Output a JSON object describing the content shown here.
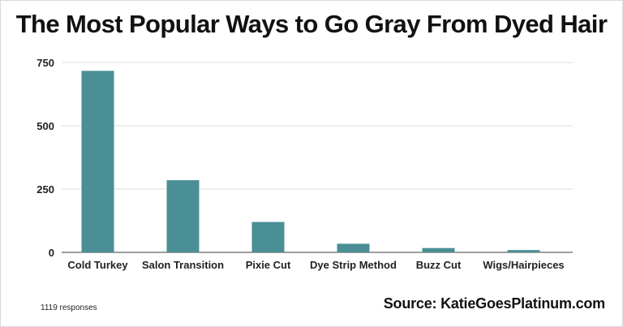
{
  "chart_data": {
    "type": "bar",
    "title": "The Most Popular Ways to Go Gray From Dyed Hair",
    "categories": [
      "Cold Turkey",
      "Salon Transition",
      "Pixie Cut",
      "Dye Strip Method",
      "Buzz Cut",
      "Wigs/Hairpieces"
    ],
    "values": [
      717,
      285,
      120,
      34,
      17,
      9
    ],
    "ylim": [
      0,
      750
    ],
    "yticks": [
      "0",
      "250",
      "500",
      "750"
    ],
    "xlabel": "",
    "ylabel": "",
    "grid": true,
    "bar_color": "#4a8f96"
  },
  "footer": {
    "responses": "1119 responses",
    "source": "Source: KatieGoesPlatinum.com"
  }
}
